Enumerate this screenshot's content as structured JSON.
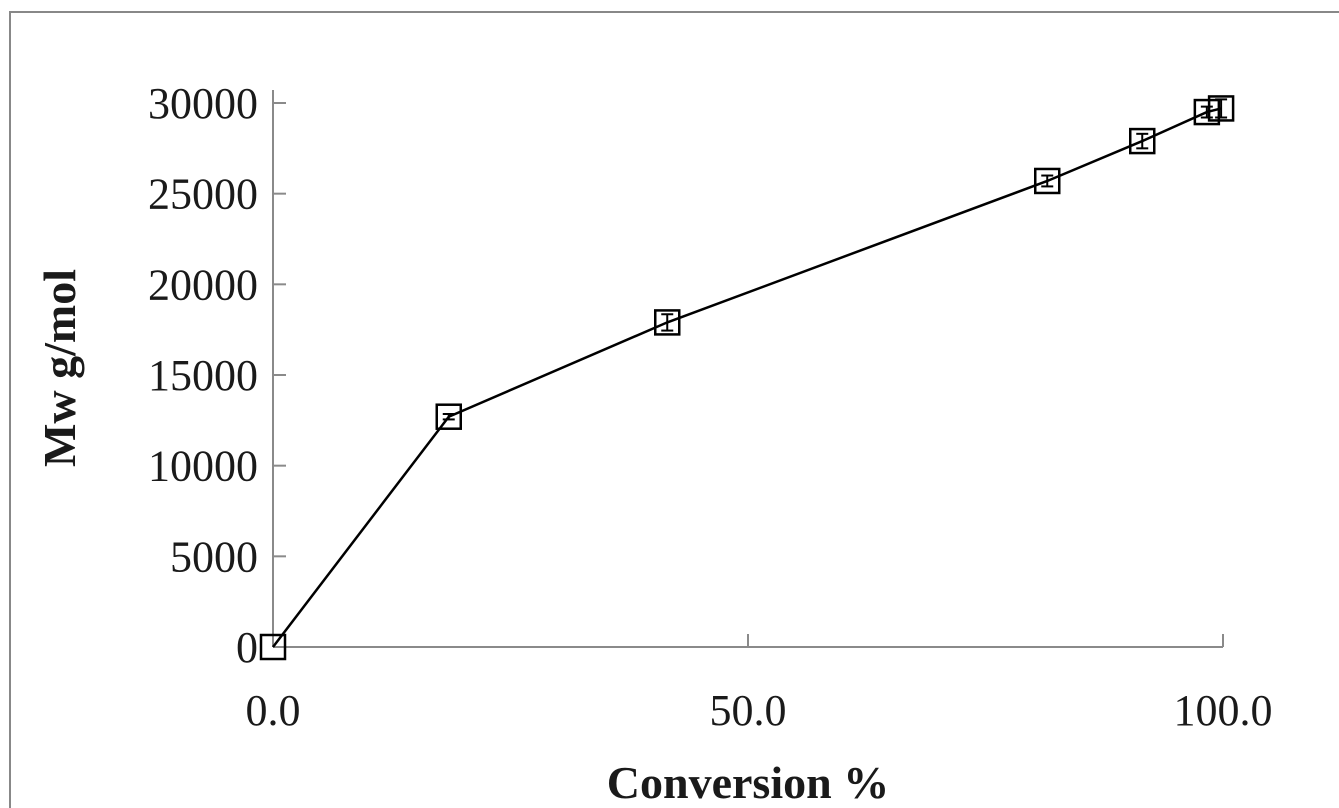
{
  "chart_data": {
    "type": "scatter",
    "title": "",
    "xlabel": "Conversion %",
    "ylabel": "Mw g/mol",
    "xlim": [
      0,
      100
    ],
    "ylim": [
      0,
      30000
    ],
    "x_ticks": [
      "0.0",
      "50.0",
      "100.0"
    ],
    "y_ticks": [
      "0",
      "5000",
      "10000",
      "15000",
      "20000",
      "25000",
      "30000"
    ],
    "grid": false,
    "legend": "none",
    "line_color": "#000000",
    "marker": "open-square",
    "series": [
      {
        "x": [
          0.0,
          18.5,
          41.5,
          81.5,
          91.5,
          98.3,
          99.8
        ],
        "y": [
          0,
          12700,
          17900,
          25700,
          27900,
          29500,
          29700
        ],
        "error": [
          0,
          150,
          450,
          300,
          400,
          300,
          500
        ]
      }
    ]
  }
}
